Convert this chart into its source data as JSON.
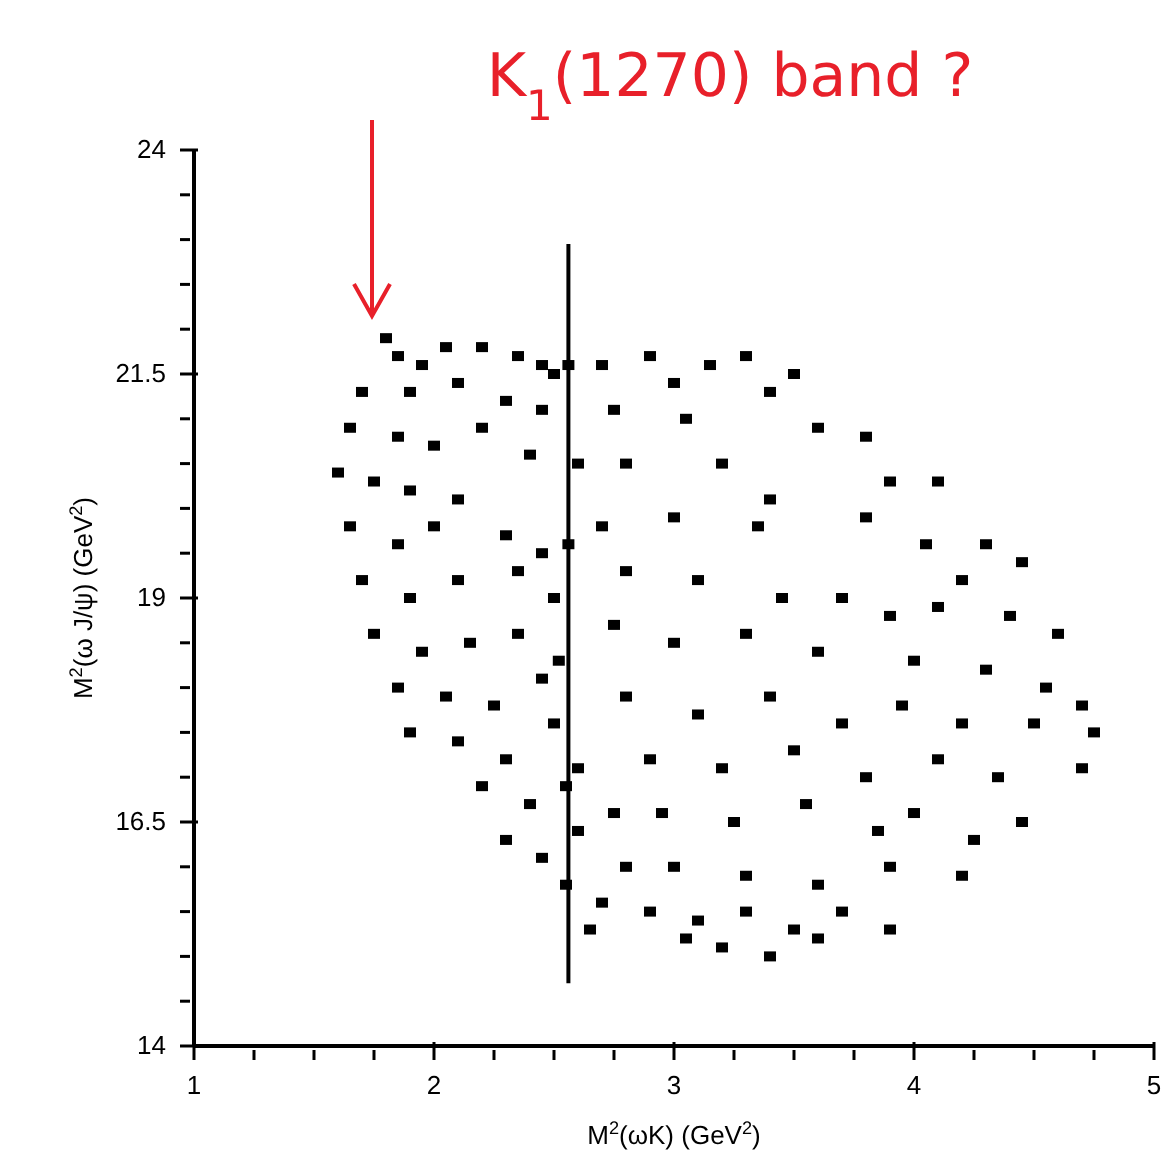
{
  "chart_data": {
    "type": "scatter",
    "xlabel": "M$^{2}$(ωK) (GeV$^{2}$)",
    "ylabel": "M$^{2}$(ω J/ψ) (GeV$^{2}$)",
    "annotations": [
      "K$_{1}$(1270) band ?"
    ],
    "xlim": [
      1,
      5
    ],
    "ylim": [
      14,
      24
    ],
    "xticks": [
      1,
      {
        "value": 1.25,
        "label": null
      },
      {
        "value": 1.5,
        "label": null
      },
      {
        "value": 1.75,
        "label": null
      },
      2,
      {
        "value": 2.25,
        "label": null
      },
      {
        "value": 2.5,
        "label": null
      },
      {
        "value": 2.75,
        "label": null
      },
      3,
      {
        "value": 3.25,
        "label": null
      },
      {
        "value": 3.5,
        "label": null
      },
      {
        "value": 3.75,
        "label": null
      },
      4,
      {
        "value": 4.25,
        "label": null
      },
      {
        "value": 4.5,
        "label": null
      },
      {
        "value": 4.75,
        "label": null
      },
      5
    ],
    "yticks": [
      14,
      {
        "value": 14.5,
        "label": null
      },
      {
        "value": 15,
        "label": null
      },
      {
        "value": 15.5,
        "label": null
      },
      {
        "value": 16,
        "label": null
      },
      16.5,
      {
        "value": 17,
        "label": null
      },
      {
        "value": 17.5,
        "label": null
      },
      {
        "value": 18,
        "label": null
      },
      {
        "value": 18.5,
        "label": null
      },
      19,
      {
        "value": 19.5,
        "label": null
      },
      {
        "value": 20,
        "label": null
      },
      {
        "value": 20.5,
        "label": null
      },
      {
        "value": 21,
        "label": null
      },
      21.5,
      {
        "value": 22,
        "label": null
      },
      {
        "value": 22.5,
        "label": null
      },
      {
        "value": 23,
        "label": null
      },
      {
        "value": 23.5,
        "label": null
      },
      24
    ],
    "marker": "square",
    "series": [
      {
        "color": "#000000",
        "x": [
          1.8,
          1.85,
          1.95,
          2.05,
          2.2,
          2.35,
          2.45,
          2.5,
          1.7,
          1.9,
          2.1,
          2.3,
          2.45,
          1.65,
          1.85,
          2.0,
          2.2,
          2.4,
          1.6,
          1.75,
          1.9,
          2.1,
          1.65,
          1.85,
          2.0,
          2.3,
          2.45,
          1.7,
          1.9,
          2.1,
          2.35,
          2.5,
          1.75,
          1.95,
          2.15,
          2.35,
          1.85,
          2.05,
          2.25,
          2.45,
          1.9,
          2.1,
          2.3,
          2.5,
          2.2,
          2.4,
          2.55,
          2.3,
          2.45,
          2.6,
          2.55,
          2.7,
          2.65,
          2.8,
          2.75,
          2.6,
          2.52,
          2.56,
          2.6,
          2.56,
          2.7,
          2.9,
          3.0,
          3.15,
          3.3,
          3.5,
          2.75,
          3.05,
          3.4,
          3.6,
          3.8,
          3.9,
          4.1,
          2.8,
          3.2,
          3.4,
          2.7,
          3.0,
          3.35,
          3.8,
          4.05,
          4.3,
          4.45,
          4.2,
          2.8,
          3.1,
          3.45,
          3.7,
          3.9,
          4.1,
          4.4,
          4.6,
          2.75,
          3.0,
          3.3,
          3.6,
          4.0,
          4.3,
          4.55,
          4.7,
          2.8,
          3.1,
          3.4,
          3.7,
          3.95,
          4.2,
          4.5,
          4.75,
          2.9,
          3.2,
          3.5,
          3.8,
          4.1,
          4.35,
          4.7,
          2.95,
          3.25,
          3.55,
          3.85,
          4.0,
          4.25,
          4.45,
          3.0,
          3.3,
          3.6,
          3.9,
          4.2,
          2.9,
          3.1,
          3.3,
          3.5,
          3.7,
          3.9,
          3.2,
          3.4,
          3.6,
          3.05
        ],
        "values": [
          21.9,
          21.7,
          21.6,
          21.8,
          21.8,
          21.7,
          21.6,
          21.5,
          21.3,
          21.3,
          21.4,
          21.2,
          21.1,
          20.9,
          20.8,
          20.7,
          20.9,
          20.6,
          20.4,
          20.3,
          20.2,
          20.1,
          19.8,
          19.6,
          19.8,
          19.7,
          19.5,
          19.2,
          19.0,
          19.2,
          19.3,
          19.0,
          18.6,
          18.4,
          18.5,
          18.6,
          18.0,
          17.9,
          17.8,
          18.1,
          17.5,
          17.4,
          17.2,
          17.6,
          16.9,
          16.7,
          16.9,
          16.3,
          16.1,
          16.4,
          15.8,
          15.6,
          15.3,
          16.0,
          16.6,
          17.1,
          18.3,
          19.6,
          20.5,
          21.6,
          21.6,
          21.7,
          21.4,
          21.6,
          21.7,
          21.5,
          21.1,
          21.0,
          21.3,
          20.9,
          20.8,
          20.3,
          20.3,
          20.5,
          20.5,
          20.1,
          19.8,
          19.9,
          19.8,
          19.9,
          19.6,
          19.6,
          19.4,
          19.2,
          19.3,
          19.2,
          19.0,
          19.0,
          18.8,
          18.9,
          18.8,
          18.6,
          18.7,
          18.5,
          18.6,
          18.4,
          18.3,
          18.2,
          18.0,
          17.8,
          17.9,
          17.7,
          17.9,
          17.6,
          17.8,
          17.6,
          17.6,
          17.5,
          17.2,
          17.1,
          17.3,
          17.0,
          17.2,
          17.0,
          17.1,
          16.6,
          16.5,
          16.7,
          16.4,
          16.6,
          16.3,
          16.5,
          16.0,
          15.9,
          15.8,
          16.0,
          15.9,
          15.5,
          15.4,
          15.5,
          15.3,
          15.5,
          15.3,
          15.1,
          15.0,
          15.2,
          15.2
        ]
      },
      {
        "type": "line",
        "color": "#000000",
        "marker": "none",
        "line_style": "solid",
        "x": [
          2.56,
          2.56
        ],
        "values": [
          14.7,
          22.95
        ]
      }
    ]
  }
}
